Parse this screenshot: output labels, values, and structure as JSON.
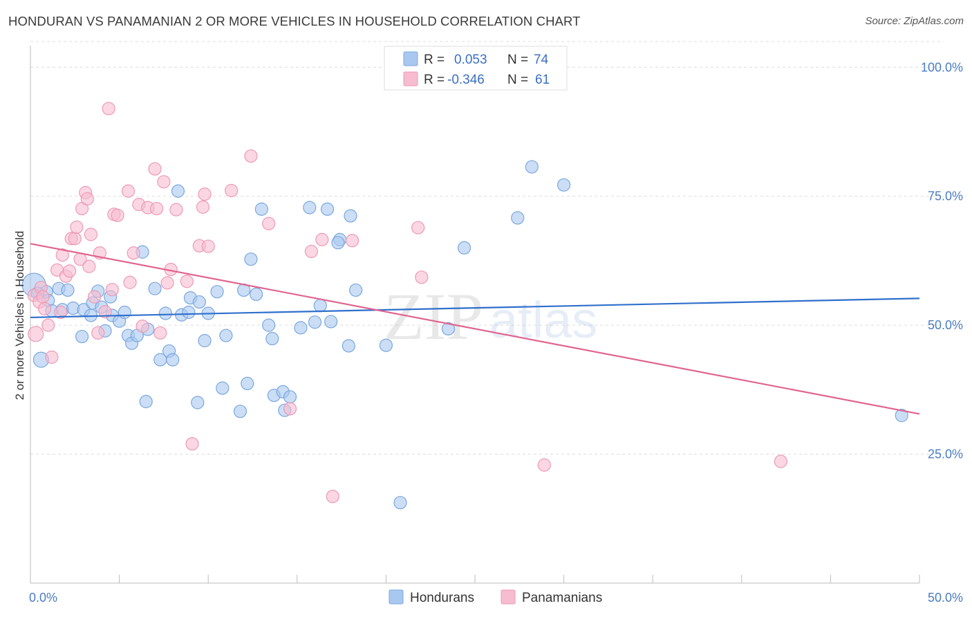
{
  "title": "HONDURAN VS PANAMANIAN 2 OR MORE VEHICLES IN HOUSEHOLD CORRELATION CHART",
  "source": "Source: ZipAtlas.com",
  "colors": {
    "honduran_fill": "#a9c8f0",
    "honduran_stroke": "#7aa7de",
    "honduran_line": "#2f6fcc",
    "panamanian_fill": "#f6bcd0",
    "panamanian_stroke": "#ee99b5",
    "panamanian_line": "#e0648f",
    "tick_label": "#4a7cc4"
  },
  "legend": {
    "rows": [
      {
        "r_label": "R =",
        "r_value": "0.053",
        "n_label": "N =",
        "n_value": "74"
      },
      {
        "r_label": "R =",
        "r_value": "-0.346",
        "n_label": "N =",
        "n_value": "61"
      }
    ]
  },
  "watermark": {
    "zip": "ZIP",
    "atlas": "atlas"
  },
  "chart_data": {
    "type": "scatter",
    "title": "HONDURAN VS PANAMANIAN 2 OR MORE VEHICLES IN HOUSEHOLD CORRELATION CHART",
    "xlabel": "",
    "ylabel": "2 or more Vehicles in Household",
    "xlim": [
      0,
      50
    ],
    "ylim": [
      0,
      105
    ],
    "x_tick_labels": [
      "0.0%",
      "50.0%"
    ],
    "y_ticks": [
      25,
      50,
      75,
      100
    ],
    "y_tick_labels": [
      "25.0%",
      "50.0%",
      "75.0%",
      "100.0%"
    ],
    "grid": true,
    "legend_position": "top-center",
    "series": [
      {
        "name": "Hondurans",
        "trend": {
          "x": [
            0,
            50
          ],
          "y": [
            51.5,
            55.2
          ]
        },
        "points": [
          [
            0.2,
            57.8
          ],
          [
            0.6,
            43.3
          ],
          [
            0.9,
            56.5
          ],
          [
            1.0,
            54.8
          ],
          [
            1.2,
            52.8
          ],
          [
            1.6,
            57.1
          ],
          [
            1.8,
            53.0
          ],
          [
            2.1,
            56.8
          ],
          [
            2.4,
            53.3
          ],
          [
            2.9,
            47.8
          ],
          [
            3.0,
            53.0
          ],
          [
            3.4,
            51.9
          ],
          [
            3.5,
            54.3
          ],
          [
            3.8,
            56.6
          ],
          [
            4.0,
            53.5
          ],
          [
            4.2,
            48.9
          ],
          [
            4.5,
            55.5
          ],
          [
            4.6,
            51.9
          ],
          [
            5.0,
            50.8
          ],
          [
            5.3,
            52.5
          ],
          [
            5.5,
            48.0
          ],
          [
            5.7,
            46.5
          ],
          [
            6.0,
            48.0
          ],
          [
            6.3,
            64.2
          ],
          [
            6.5,
            35.2
          ],
          [
            6.6,
            49.2
          ],
          [
            7.0,
            57.1
          ],
          [
            7.3,
            43.3
          ],
          [
            7.6,
            52.3
          ],
          [
            7.8,
            45.0
          ],
          [
            8.0,
            43.3
          ],
          [
            8.3,
            76.0
          ],
          [
            8.5,
            52.0
          ],
          [
            8.9,
            52.5
          ],
          [
            9.0,
            55.3
          ],
          [
            9.4,
            35.0
          ],
          [
            9.5,
            54.5
          ],
          [
            9.8,
            47.0
          ],
          [
            10.0,
            52.3
          ],
          [
            10.5,
            56.5
          ],
          [
            10.8,
            37.8
          ],
          [
            11.0,
            48.0
          ],
          [
            11.8,
            33.3
          ],
          [
            12.0,
            56.8
          ],
          [
            12.2,
            38.7
          ],
          [
            12.4,
            62.8
          ],
          [
            12.7,
            56.0
          ],
          [
            13.0,
            72.5
          ],
          [
            13.4,
            50.0
          ],
          [
            13.6,
            47.4
          ],
          [
            13.7,
            36.4
          ],
          [
            14.2,
            37.1
          ],
          [
            14.3,
            33.5
          ],
          [
            14.6,
            36.1
          ],
          [
            15.2,
            49.5
          ],
          [
            15.7,
            72.8
          ],
          [
            16.0,
            50.6
          ],
          [
            16.3,
            53.8
          ],
          [
            16.7,
            72.5
          ],
          [
            16.9,
            50.7
          ],
          [
            17.4,
            66.6
          ],
          [
            17.3,
            66.0
          ],
          [
            17.9,
            46.0
          ],
          [
            18.0,
            71.2
          ],
          [
            18.3,
            56.8
          ],
          [
            20.0,
            46.1
          ],
          [
            20.8,
            15.6
          ],
          [
            23.5,
            49.3
          ],
          [
            24.4,
            65.0
          ],
          [
            27.4,
            70.8
          ],
          [
            28.2,
            80.7
          ],
          [
            30.0,
            77.2
          ],
          [
            49.0,
            32.5
          ],
          [
            0.4,
            56.2
          ]
        ]
      },
      {
        "name": "Panamanians",
        "trend": {
          "x": [
            0,
            50
          ],
          "y": [
            65.8,
            32.8
          ]
        },
        "points": [
          [
            0.2,
            55.8
          ],
          [
            0.3,
            48.3
          ],
          [
            0.5,
            54.5
          ],
          [
            0.6,
            57.3
          ],
          [
            0.7,
            55.5
          ],
          [
            0.8,
            53.2
          ],
          [
            1.0,
            50.0
          ],
          [
            1.2,
            43.8
          ],
          [
            1.5,
            60.7
          ],
          [
            1.7,
            52.5
          ],
          [
            1.8,
            63.6
          ],
          [
            2.0,
            59.5
          ],
          [
            2.2,
            60.5
          ],
          [
            2.3,
            66.8
          ],
          [
            2.5,
            66.8
          ],
          [
            2.6,
            69.0
          ],
          [
            2.8,
            62.8
          ],
          [
            2.9,
            72.6
          ],
          [
            3.1,
            75.7
          ],
          [
            3.2,
            74.5
          ],
          [
            3.3,
            61.4
          ],
          [
            3.4,
            67.6
          ],
          [
            3.6,
            55.5
          ],
          [
            3.8,
            48.5
          ],
          [
            3.9,
            64.0
          ],
          [
            4.2,
            52.6
          ],
          [
            4.4,
            92.0
          ],
          [
            4.6,
            56.9
          ],
          [
            4.7,
            71.5
          ],
          [
            4.9,
            71.3
          ],
          [
            5.5,
            76.0
          ],
          [
            5.6,
            58.3
          ],
          [
            5.8,
            64.0
          ],
          [
            6.1,
            73.4
          ],
          [
            6.3,
            49.8
          ],
          [
            6.6,
            72.8
          ],
          [
            7.0,
            80.3
          ],
          [
            7.1,
            72.6
          ],
          [
            7.3,
            48.5
          ],
          [
            7.5,
            77.8
          ],
          [
            7.7,
            58.2
          ],
          [
            7.9,
            60.8
          ],
          [
            8.2,
            72.4
          ],
          [
            8.8,
            58.5
          ],
          [
            9.1,
            27.0
          ],
          [
            9.5,
            65.4
          ],
          [
            9.7,
            72.9
          ],
          [
            9.8,
            75.4
          ],
          [
            10.0,
            65.3
          ],
          [
            11.3,
            76.1
          ],
          [
            12.4,
            82.8
          ],
          [
            13.4,
            69.7
          ],
          [
            14.6,
            33.8
          ],
          [
            15.8,
            64.3
          ],
          [
            16.4,
            66.6
          ],
          [
            17.0,
            16.8
          ],
          [
            18.1,
            66.4
          ],
          [
            21.8,
            68.9
          ],
          [
            22.0,
            59.3
          ],
          [
            28.9,
            22.9
          ],
          [
            42.2,
            23.6
          ]
        ]
      }
    ]
  }
}
